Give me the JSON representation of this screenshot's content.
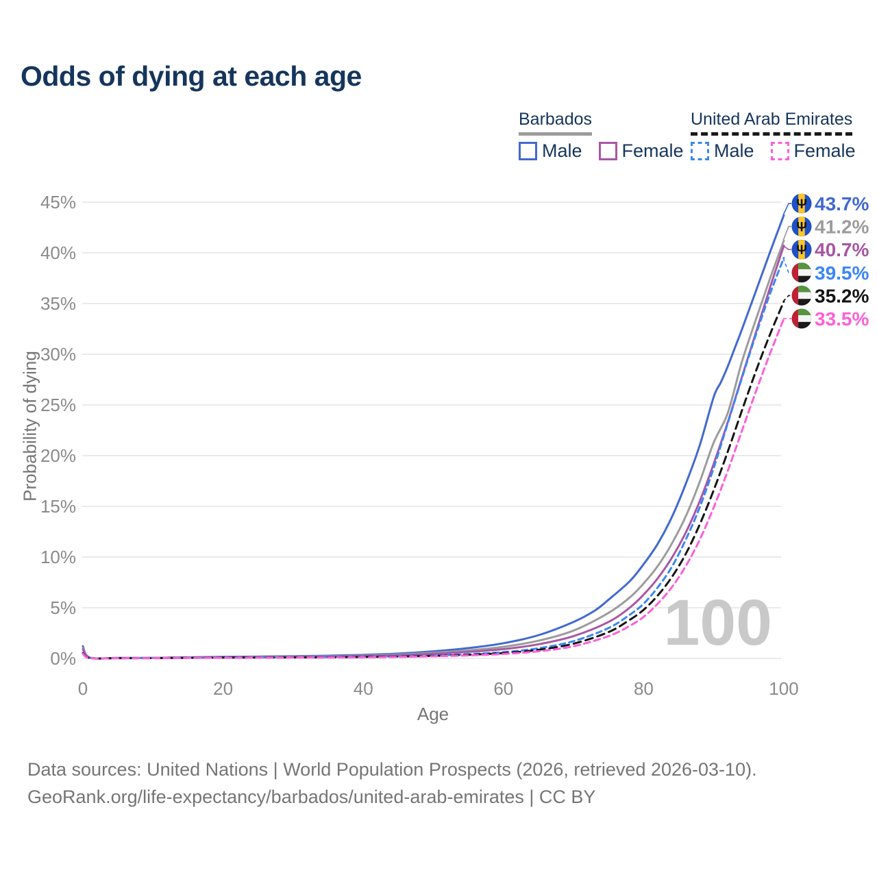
{
  "header": {
    "title": "Odds of dying at each age"
  },
  "legend": {
    "groups": [
      {
        "title": "Barbados",
        "underline_style": "solid",
        "underline_color": "#9c9c9c",
        "items": [
          {
            "label": "Male",
            "color": "#4269d0",
            "dashed": false
          },
          {
            "label": "Female",
            "color": "#a757a3",
            "dashed": false
          }
        ]
      },
      {
        "title": "United Arab Emirates",
        "underline_style": "dashed",
        "underline_color": "#1a1a1a",
        "items": [
          {
            "label": "Male",
            "color": "#3b86f5",
            "dashed": true
          },
          {
            "label": "Female",
            "color": "#ff5fd6",
            "dashed": true
          }
        ]
      }
    ]
  },
  "chart_data": {
    "type": "line",
    "title": "Odds of dying at each age",
    "xlabel": "Age",
    "ylabel": "Probability of dying",
    "xlim": [
      0,
      100
    ],
    "ylim": [
      0,
      45
    ],
    "x_ticks": [
      0,
      20,
      40,
      60,
      80,
      100
    ],
    "y_ticks": [
      0,
      5,
      10,
      15,
      20,
      25,
      30,
      35,
      40,
      45
    ],
    "y_tick_suffix": "%",
    "grid": "horizontal",
    "legend_position": "top-right",
    "watermark": "100",
    "flags": {
      "barbados": {
        "bands": [
          "#1e50c8",
          "#ffc726",
          "#1e50c8"
        ],
        "trident": "#111111"
      },
      "uae": {
        "red": "#bf2233",
        "green": "#55953f",
        "white": "#f5f5f5",
        "black": "#1a1a1a"
      }
    },
    "series": [
      {
        "name": "Barbados Male",
        "country": "Barbados",
        "sex": "Male",
        "color": "#4269d0",
        "dashed": false,
        "dash": null,
        "flag": "barbados",
        "end_label": "43.7%",
        "points": [
          [
            0,
            1.2
          ],
          [
            1,
            0.08
          ],
          [
            5,
            0.05
          ],
          [
            10,
            0.06
          ],
          [
            15,
            0.11
          ],
          [
            20,
            0.16
          ],
          [
            25,
            0.19
          ],
          [
            30,
            0.22
          ],
          [
            35,
            0.27
          ],
          [
            40,
            0.35
          ],
          [
            45,
            0.48
          ],
          [
            50,
            0.7
          ],
          [
            55,
            1.02
          ],
          [
            60,
            1.5
          ],
          [
            65,
            2.3
          ],
          [
            70,
            3.6
          ],
          [
            73,
            4.7
          ],
          [
            75,
            5.8
          ],
          [
            78,
            7.6
          ],
          [
            80,
            9.3
          ],
          [
            82,
            11.3
          ],
          [
            84,
            13.9
          ],
          [
            86,
            17.2
          ],
          [
            88,
            21.0
          ],
          [
            90,
            25.8
          ],
          [
            91,
            27.2
          ],
          [
            92,
            28.8
          ],
          [
            93,
            30.6
          ],
          [
            94,
            32.4
          ],
          [
            96,
            36.2
          ],
          [
            98,
            40.0
          ],
          [
            100,
            43.7
          ]
        ]
      },
      {
        "name": "Barbados Both sexes",
        "country": "Barbados",
        "sex": "Both",
        "color": "#9c9c9c",
        "dashed": false,
        "dash": null,
        "flag": "barbados",
        "end_label": "41.2%",
        "points": [
          [
            0,
            1.05
          ],
          [
            1,
            0.07
          ],
          [
            5,
            0.04
          ],
          [
            10,
            0.05
          ],
          [
            15,
            0.09
          ],
          [
            20,
            0.12
          ],
          [
            25,
            0.15
          ],
          [
            30,
            0.17
          ],
          [
            35,
            0.21
          ],
          [
            40,
            0.28
          ],
          [
            45,
            0.39
          ],
          [
            50,
            0.56
          ],
          [
            55,
            0.8
          ],
          [
            60,
            1.15
          ],
          [
            65,
            1.75
          ],
          [
            70,
            2.75
          ],
          [
            75,
            4.5
          ],
          [
            78,
            6.0
          ],
          [
            80,
            7.4
          ],
          [
            82,
            9.1
          ],
          [
            84,
            11.3
          ],
          [
            86,
            14.0
          ],
          [
            88,
            17.4
          ],
          [
            90,
            21.3
          ],
          [
            92,
            24.2
          ],
          [
            94,
            29.2
          ],
          [
            96,
            33.4
          ],
          [
            98,
            37.4
          ],
          [
            100,
            41.2
          ]
        ]
      },
      {
        "name": "Barbados Female",
        "country": "Barbados",
        "sex": "Female",
        "color": "#a757a3",
        "dashed": false,
        "dash": null,
        "flag": "barbados",
        "end_label": "40.7%",
        "points": [
          [
            0,
            0.9
          ],
          [
            1,
            0.06
          ],
          [
            5,
            0.04
          ],
          [
            10,
            0.04
          ],
          [
            15,
            0.07
          ],
          [
            20,
            0.09
          ],
          [
            25,
            0.11
          ],
          [
            30,
            0.13
          ],
          [
            35,
            0.17
          ],
          [
            40,
            0.22
          ],
          [
            45,
            0.31
          ],
          [
            50,
            0.45
          ],
          [
            55,
            0.65
          ],
          [
            60,
            0.92
          ],
          [
            65,
            1.4
          ],
          [
            70,
            2.2
          ],
          [
            75,
            3.6
          ],
          [
            78,
            5.0
          ],
          [
            80,
            6.3
          ],
          [
            82,
            7.9
          ],
          [
            84,
            9.9
          ],
          [
            86,
            12.4
          ],
          [
            88,
            15.5
          ],
          [
            90,
            19.2
          ],
          [
            92,
            23.3
          ],
          [
            94,
            27.7
          ],
          [
            96,
            32.1
          ],
          [
            98,
            36.5
          ],
          [
            100,
            40.7
          ]
        ]
      },
      {
        "name": "United Arab Emirates Male",
        "country": "United Arab Emirates",
        "sex": "Male",
        "color": "#3b86f5",
        "dashed": true,
        "dash": "8 6",
        "flag": "uae",
        "end_label": "39.5%",
        "points": [
          [
            0,
            0.55
          ],
          [
            1,
            0.04
          ],
          [
            5,
            0.03
          ],
          [
            10,
            0.04
          ],
          [
            15,
            0.07
          ],
          [
            20,
            0.1
          ],
          [
            25,
            0.11
          ],
          [
            30,
            0.12
          ],
          [
            35,
            0.13
          ],
          [
            40,
            0.16
          ],
          [
            45,
            0.21
          ],
          [
            50,
            0.29
          ],
          [
            55,
            0.42
          ],
          [
            60,
            0.62
          ],
          [
            65,
            1.0
          ],
          [
            70,
            1.7
          ],
          [
            75,
            3.0
          ],
          [
            78,
            4.3
          ],
          [
            80,
            5.4
          ],
          [
            82,
            7.0
          ],
          [
            84,
            9.0
          ],
          [
            86,
            11.7
          ],
          [
            88,
            14.9
          ],
          [
            90,
            18.8
          ],
          [
            92,
            23.2
          ],
          [
            94,
            27.6
          ],
          [
            96,
            31.9
          ],
          [
            98,
            35.9
          ],
          [
            100,
            39.5
          ]
        ]
      },
      {
        "name": "United Arab Emirates Both sexes",
        "country": "United Arab Emirates",
        "sex": "Both",
        "color": "#141414",
        "dashed": true,
        "dash": "11 7",
        "flag": "uae",
        "end_label": "35.2%",
        "points": [
          [
            0,
            0.5
          ],
          [
            1,
            0.04
          ],
          [
            5,
            0.03
          ],
          [
            10,
            0.03
          ],
          [
            15,
            0.06
          ],
          [
            20,
            0.08
          ],
          [
            25,
            0.09
          ],
          [
            30,
            0.1
          ],
          [
            35,
            0.11
          ],
          [
            40,
            0.14
          ],
          [
            45,
            0.18
          ],
          [
            50,
            0.25
          ],
          [
            55,
            0.36
          ],
          [
            60,
            0.53
          ],
          [
            65,
            0.85
          ],
          [
            70,
            1.45
          ],
          [
            75,
            2.6
          ],
          [
            78,
            3.8
          ],
          [
            80,
            4.8
          ],
          [
            82,
            6.2
          ],
          [
            84,
            8.0
          ],
          [
            86,
            10.3
          ],
          [
            88,
            13.2
          ],
          [
            90,
            16.6
          ],
          [
            92,
            20.4
          ],
          [
            94,
            24.4
          ],
          [
            96,
            28.3
          ],
          [
            98,
            31.9
          ],
          [
            100,
            35.2
          ]
        ]
      },
      {
        "name": "United Arab Emirates Female",
        "country": "United Arab Emirates",
        "sex": "Female",
        "color": "#ff5fd6",
        "dashed": true,
        "dash": "9 6",
        "flag": "uae",
        "end_label": "33.5%",
        "points": [
          [
            0,
            0.45
          ],
          [
            1,
            0.03
          ],
          [
            5,
            0.02
          ],
          [
            10,
            0.03
          ],
          [
            15,
            0.05
          ],
          [
            20,
            0.06
          ],
          [
            25,
            0.07
          ],
          [
            30,
            0.08
          ],
          [
            35,
            0.09
          ],
          [
            40,
            0.11
          ],
          [
            45,
            0.15
          ],
          [
            50,
            0.21
          ],
          [
            55,
            0.3
          ],
          [
            60,
            0.44
          ],
          [
            65,
            0.7
          ],
          [
            70,
            1.2
          ],
          [
            75,
            2.2
          ],
          [
            78,
            3.2
          ],
          [
            80,
            4.1
          ],
          [
            82,
            5.4
          ],
          [
            84,
            7.0
          ],
          [
            86,
            9.1
          ],
          [
            88,
            11.7
          ],
          [
            90,
            14.9
          ],
          [
            92,
            18.5
          ],
          [
            94,
            22.4
          ],
          [
            96,
            26.3
          ],
          [
            98,
            30.0
          ],
          [
            100,
            33.5
          ]
        ]
      }
    ]
  },
  "footer": {
    "line1": "Data sources: United Nations | World Population Prospects (2026, retrieved 2026-03-10).",
    "line2": "GeoRank.org/life-expectancy/barbados/united-arab-emirates | CC BY"
  }
}
